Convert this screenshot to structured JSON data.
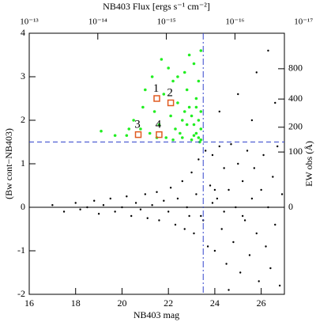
{
  "chart_data": {
    "type": "scatter",
    "xlabel": "NB403 mag",
    "ylabel": "(Bw cont−NB403)",
    "x2label": "NB403 Flux [ergs s⁻¹ cm⁻²]",
    "y2label": "EW obs (Å)",
    "xlim": [
      16,
      27
    ],
    "xticks": [
      16,
      18,
      20,
      22,
      24,
      26
    ],
    "ylim": [
      -2,
      4
    ],
    "yticks": [
      -2,
      -1,
      0,
      1,
      2,
      3,
      4
    ],
    "x2lim": [
      1e-13,
      1.9e-17
    ],
    "x2scale": "log",
    "x2ticks": [
      {
        "value": 1e-13,
        "label": "10⁻¹³"
      },
      {
        "value": 1e-14,
        "label": "10⁻¹⁴"
      },
      {
        "value": 1e-15,
        "label": "10⁻¹⁵"
      },
      {
        "value": 1e-16,
        "label": "10⁻¹⁶"
      },
      {
        "value": 1e-17,
        "label": "10⁻¹⁷"
      }
    ],
    "y2ticks": [
      0,
      100,
      200,
      400,
      800
    ],
    "hlines": [
      {
        "y": 1.5,
        "color": "#3344cc",
        "style": "dashed"
      },
      {
        "y": 0,
        "color": "#000000",
        "style": "solid"
      }
    ],
    "vlines": [
      {
        "x": 23.5,
        "color": "#3344cc",
        "style": "dashdot"
      }
    ],
    "series": [
      {
        "color": "#000000",
        "x": [
          17.0,
          17.5,
          18.0,
          18.2,
          18.5,
          18.8,
          19.0,
          19.2,
          19.5,
          19.7,
          20.0,
          20.2,
          20.4,
          20.6,
          20.8,
          21.0,
          21.1,
          21.3,
          21.5,
          21.6,
          21.8,
          22.0,
          22.1,
          22.3,
          22.4,
          22.6,
          22.7,
          22.8,
          23.0,
          23.1,
          23.2,
          23.3,
          23.4,
          23.6,
          23.7,
          23.8,
          23.9,
          24.0,
          24.1,
          24.2,
          24.3,
          24.4,
          24.5,
          24.6,
          24.7,
          24.8,
          24.9,
          25.0,
          25.1,
          25.2,
          25.3,
          25.4,
          25.5,
          25.6,
          25.7,
          25.8,
          25.9,
          26.0,
          26.1,
          26.2,
          26.3,
          26.4,
          26.5,
          26.6,
          26.7,
          26.8,
          26.9,
          24.2,
          25.0,
          25.8,
          26.3,
          24.6,
          25.6,
          23.9,
          24.4,
          25.2,
          23.5,
          24.0,
          22.9,
          26.6
        ],
        "values": [
          0.05,
          -0.1,
          0.1,
          -0.05,
          0.0,
          0.15,
          -0.15,
          0.05,
          0.2,
          -0.1,
          0.0,
          0.25,
          -0.2,
          0.1,
          -0.05,
          0.3,
          -0.25,
          0.05,
          0.35,
          -0.3,
          0.15,
          -0.1,
          0.45,
          -0.4,
          0.2,
          0.6,
          -0.5,
          0.0,
          0.8,
          -0.6,
          0.3,
          1.1,
          -0.2,
          1.3,
          -0.9,
          0.5,
          1.2,
          -1.0,
          0.2,
          1.4,
          -0.5,
          0.9,
          -1.3,
          0.4,
          1.45,
          -0.8,
          0.0,
          1.0,
          -1.5,
          0.6,
          -0.3,
          1.3,
          -1.1,
          0.2,
          0.9,
          -0.6,
          -1.7,
          0.4,
          1.2,
          -0.9,
          0.0,
          -1.4,
          0.7,
          -0.4,
          1.4,
          -1.8,
          0.3,
          2.2,
          2.6,
          3.1,
          3.6,
          -1.9,
          2.0,
          0.1,
          -0.1,
          -0.2,
          -0.3,
          0.4,
          -0.2,
          2.4
        ]
      },
      {
        "color": "#22ee22",
        "x": [
          23.4,
          23.3,
          23.2,
          23.4,
          23.1,
          23.3,
          23.0,
          23.4,
          22.9,
          23.2,
          22.8,
          23.3,
          22.7,
          23.1,
          23.4,
          22.6,
          22.5,
          22.4,
          22.3,
          22.2,
          22.1,
          22.0,
          21.9,
          21.8,
          21.7,
          21.6,
          21.4,
          21.3,
          21.2,
          21.0,
          20.9,
          20.8,
          20.5,
          20.3,
          20.2,
          19.7,
          19.1,
          22.6,
          22.8,
          23.0,
          23.2,
          22.9,
          23.35,
          22.2,
          21.5,
          23.1,
          22.7,
          22.4
        ],
        "values": [
          1.55,
          1.6,
          1.7,
          1.8,
          1.9,
          2.0,
          2.1,
          2.2,
          2.3,
          2.5,
          2.7,
          2.9,
          3.1,
          3.3,
          3.6,
          2.0,
          1.7,
          2.4,
          1.8,
          2.9,
          2.1,
          3.2,
          1.6,
          2.6,
          3.4,
          1.9,
          2.2,
          3.0,
          1.7,
          2.7,
          2.3,
          1.8,
          2.0,
          1.8,
          1.65,
          1.65,
          1.75,
          1.6,
          1.9,
          1.55,
          2.3,
          3.5,
          1.5,
          1.55,
          1.6,
          1.65,
          2.2,
          3.0
        ]
      }
    ],
    "annotations": [
      {
        "text": "1",
        "x": 21.5,
        "y": 2.5
      },
      {
        "text": "2",
        "x": 22.1,
        "y": 2.4
      },
      {
        "text": "3",
        "x": 20.7,
        "y": 1.67
      },
      {
        "text": "4",
        "x": 21.6,
        "y": 1.67
      }
    ],
    "annotation_color": "#e05a20"
  }
}
